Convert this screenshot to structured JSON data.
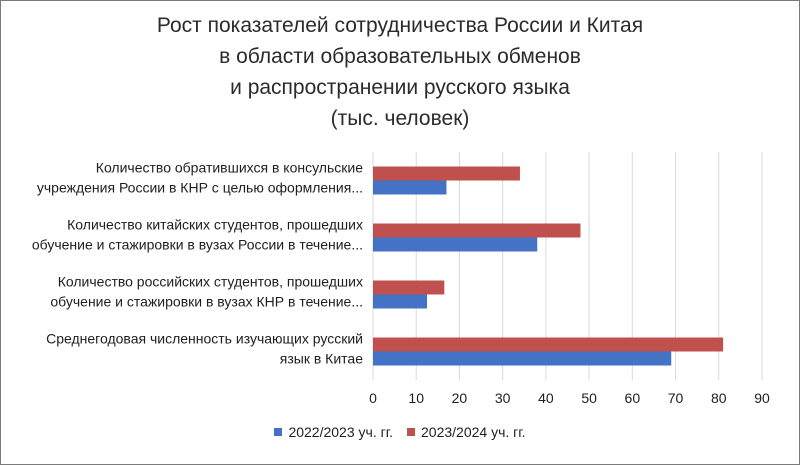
{
  "title_lines": [
    "Рост показателей  сотрудничества  России и Китая",
    "в области образовательных обменов",
    "и распространении русского языка",
    "(тыс.  человек)"
  ],
  "colors": {
    "series_2022": "#4472c4",
    "series_2023": "#c0504d",
    "grid": "#d9d9d9"
  },
  "chart_data": {
    "type": "bar",
    "orientation": "horizontal",
    "categories": [
      [
        "Количество обратившихся в консульские",
        "учреждения  России в КНР  с целью  оформления..."
      ],
      [
        "Количество китайских  студентов,  прошедших",
        "обучение  и стажировки в вузах  России в течение..."
      ],
      [
        "Количество российских студентов,  прошедших",
        "обучение  и стажировки в вузах КНР в течение..."
      ],
      [
        "Среднегодовая численность изучающих русский",
        "язык в Китае"
      ]
    ],
    "series": [
      {
        "name": "2022/2023 уч. гг.",
        "values": [
          17,
          38,
          12.5,
          69
        ]
      },
      {
        "name": "2023/2024 уч. гг.",
        "values": [
          34,
          48,
          16.5,
          81
        ]
      }
    ],
    "xlim": [
      0,
      90
    ],
    "xticks": [
      0,
      10,
      20,
      30,
      40,
      50,
      60,
      70,
      80,
      90
    ],
    "grid": true,
    "legend_position": "bottom"
  }
}
